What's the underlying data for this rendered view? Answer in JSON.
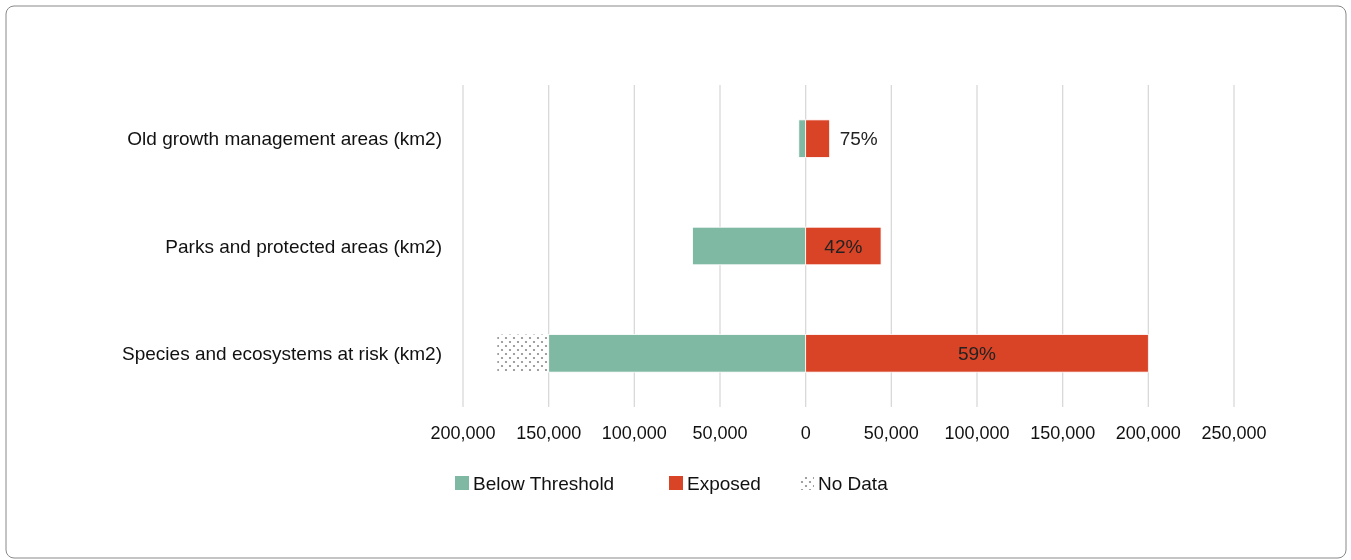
{
  "chart_data": {
    "type": "bar",
    "orientation": "horizontal",
    "stacked": true,
    "categories": [
      "Old growth management areas (km2)",
      "Parks and protected areas (km2)",
      "Species and ecosystems at risk (km2)"
    ],
    "series": [
      {
        "name": "Below Threshold",
        "color": "#7fb9a3",
        "values": [
          -4000,
          -66000,
          -150000
        ]
      },
      {
        "name": "Exposed",
        "color": "#d94427",
        "values": [
          14000,
          44000,
          200000
        ]
      },
      {
        "name": "No Data",
        "color": "#8a8a8a",
        "values": [
          null,
          null,
          -30000
        ]
      }
    ],
    "xlim": [
      -200000,
      250000
    ],
    "xticks": [
      {
        "value": -200000,
        "label": "200,000"
      },
      {
        "value": -150000,
        "label": "150,000"
      },
      {
        "value": -100000,
        "label": "100,000"
      },
      {
        "value": -50000,
        "label": "50,000"
      },
      0,
      {
        "value": 50000,
        "label": "50,000"
      },
      {
        "value": 100000,
        "label": "100,000"
      },
      {
        "value": 150000,
        "label": "150,000"
      },
      {
        "value": 200000,
        "label": "200,000"
      },
      {
        "value": 250000,
        "label": "250,000"
      }
    ],
    "annotations": [
      "75%",
      "42%",
      "59%"
    ],
    "grid": "x",
    "legend": "bottom"
  }
}
